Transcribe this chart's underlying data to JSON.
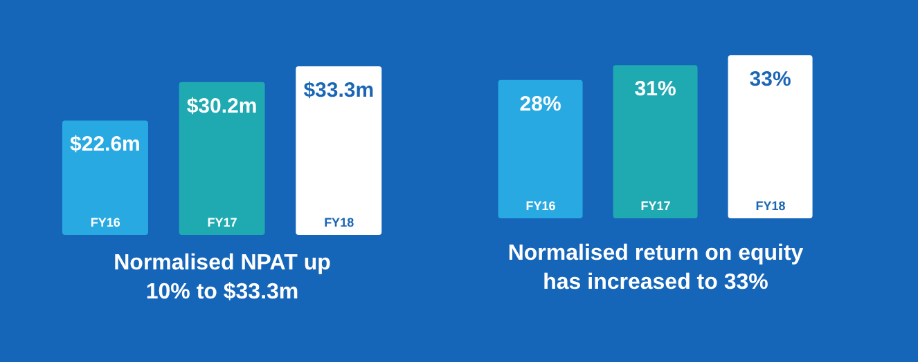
{
  "chart_data": [
    {
      "type": "bar",
      "title": "Normalised NPAT up\n10% to $33.3m",
      "categories": [
        "FY16",
        "FY17",
        "FY18"
      ],
      "values": [
        22.6,
        30.2,
        33.3
      ],
      "colors": [
        "#29a9e1",
        "#1fa9b1",
        "#ffffff"
      ],
      "value_labels": [
        "$22.6m",
        "$30.2m",
        "$33.3m"
      ]
    },
    {
      "type": "bar",
      "title": "Normalised return on equity\nhas increased to 33%",
      "categories": [
        "FY16",
        "FY17",
        "FY18"
      ],
      "values": [
        28,
        31,
        33
      ],
      "colors": [
        "#29a9e1",
        "#1fa9b1",
        "#ffffff"
      ],
      "value_labels": [
        "28%",
        "31%",
        "33%"
      ]
    }
  ]
}
